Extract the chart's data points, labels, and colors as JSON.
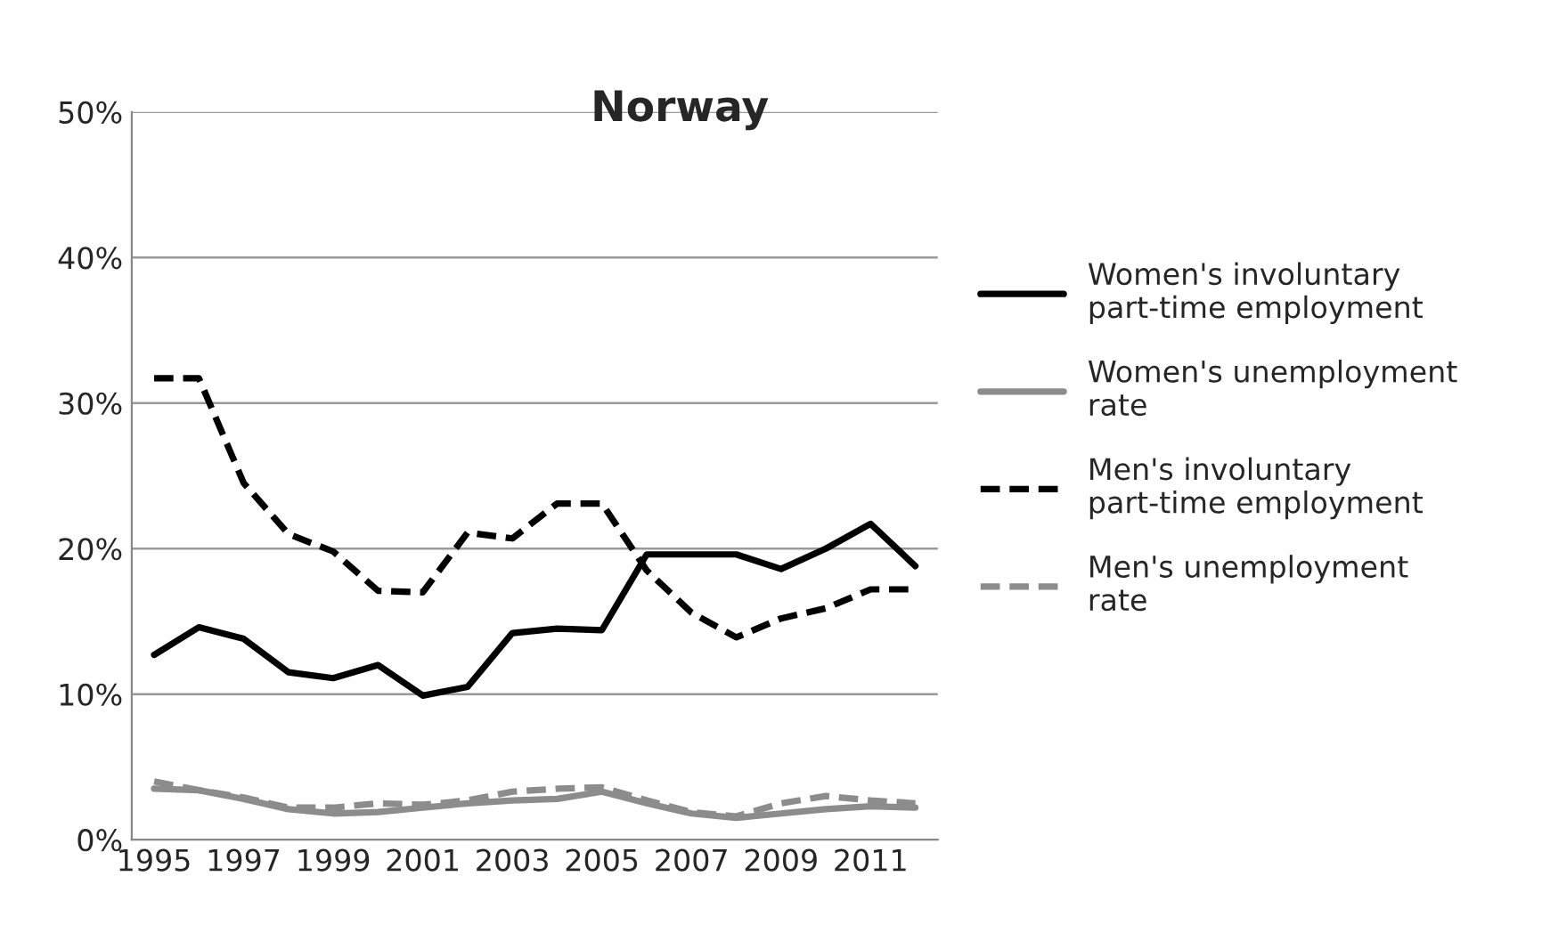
{
  "chart_data": {
    "type": "line",
    "title": "Norway",
    "categories": [
      "1995",
      null,
      "1997",
      null,
      "1999",
      null,
      "2001",
      null,
      "2003",
      null,
      "2005",
      null,
      "2007",
      null,
      "2009",
      null,
      "2011",
      null
    ],
    "series": [
      {
        "name": "Women's involuntary part-time employment",
        "color": "#000000",
        "line_style": "solid",
        "values": [
          12.7,
          14.6,
          13.8,
          11.5,
          11.1,
          12.0,
          9.9,
          10.5,
          14.2,
          14.5,
          14.4,
          19.6,
          19.6,
          19.6,
          18.6,
          20.0,
          21.7,
          18.8
        ]
      },
      {
        "name": "Women's unemployment rate",
        "color": "#8c8c8c",
        "line_style": "solid",
        "values": [
          3.5,
          3.4,
          2.8,
          2.1,
          1.8,
          1.9,
          2.2,
          2.5,
          2.7,
          2.8,
          3.3,
          2.5,
          1.8,
          1.5,
          1.8,
          2.1,
          2.3,
          2.2
        ]
      },
      {
        "name": "Men's involuntary part-time employment",
        "color": "#000000",
        "line_style": "dashed",
        "values": [
          31.7,
          31.7,
          24.5,
          21.0,
          19.8,
          17.1,
          17.0,
          21.1,
          20.7,
          23.1,
          23.1,
          18.5,
          15.6,
          13.9,
          15.2,
          15.9,
          17.2,
          17.2
        ]
      },
      {
        "name": "Men's unemployment rate",
        "color": "#8c8c8c",
        "line_style": "dashed",
        "values": [
          4.0,
          3.4,
          2.9,
          2.2,
          2.2,
          2.5,
          2.4,
          2.7,
          3.3,
          3.5,
          3.6,
          2.7,
          1.9,
          1.6,
          2.5,
          3.0,
          2.7,
          2.5
        ]
      }
    ],
    "ylim": [
      0,
      50
    ],
    "yticks": [
      {
        "value": 0,
        "label": "0%"
      },
      {
        "value": 10,
        "label": "10%"
      },
      {
        "value": 20,
        "label": "20%"
      },
      {
        "value": 30,
        "label": "30%"
      },
      {
        "value": 40,
        "label": "40%"
      },
      {
        "value": 50,
        "label": "50%"
      }
    ],
    "grid": "y",
    "legend": "right",
    "marker": "none"
  }
}
